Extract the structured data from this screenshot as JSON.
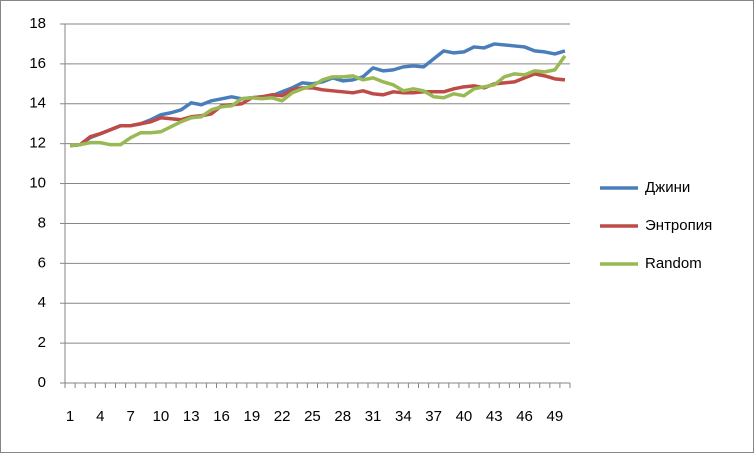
{
  "chart_data": {
    "type": "line",
    "categories": [
      1,
      null,
      null,
      4,
      null,
      null,
      7,
      null,
      null,
      10,
      null,
      null,
      13,
      null,
      null,
      16,
      null,
      null,
      19,
      null,
      null,
      22,
      null,
      null,
      25,
      null,
      null,
      28,
      null,
      null,
      31,
      null,
      null,
      34,
      null,
      null,
      37,
      null,
      null,
      40,
      null,
      null,
      43,
      null,
      null,
      46,
      null,
      null,
      49,
      null
    ],
    "series": [
      {
        "name": "Джини",
        "color": "#4a7ebb",
        "values": [
          11.9,
          11.95,
          12.3,
          12.5,
          12.7,
          12.9,
          12.9,
          13.0,
          13.2,
          13.45,
          13.55,
          13.7,
          14.05,
          13.95,
          14.15,
          14.25,
          14.35,
          14.25,
          14.3,
          14.35,
          14.4,
          14.6,
          14.8,
          15.05,
          15.0,
          15.1,
          15.3,
          15.15,
          15.2,
          15.35,
          15.8,
          15.65,
          15.7,
          15.85,
          15.9,
          15.85,
          16.25,
          16.65,
          16.55,
          16.6,
          16.85,
          16.8,
          17.0,
          16.95,
          16.9,
          16.85,
          16.65,
          16.6,
          16.5,
          16.65
        ]
      },
      {
        "name": "Энтропия",
        "color": "#be4b48",
        "values": [
          11.9,
          11.95,
          12.35,
          12.5,
          12.7,
          12.9,
          12.9,
          13.0,
          13.1,
          13.3,
          13.25,
          13.2,
          13.35,
          13.4,
          13.5,
          13.9,
          13.95,
          14.0,
          14.3,
          14.35,
          14.45,
          14.4,
          14.7,
          14.8,
          14.8,
          14.7,
          14.65,
          14.6,
          14.55,
          14.65,
          14.5,
          14.45,
          14.6,
          14.55,
          14.55,
          14.6,
          14.6,
          14.6,
          14.75,
          14.85,
          14.9,
          14.8,
          15.0,
          15.05,
          15.1,
          15.3,
          15.5,
          15.4,
          15.25,
          15.2
        ]
      },
      {
        "name": "Random",
        "color": "#98b954",
        "values": [
          11.9,
          11.95,
          12.05,
          12.05,
          11.95,
          11.95,
          12.3,
          12.55,
          12.55,
          12.6,
          12.85,
          13.1,
          13.3,
          13.35,
          13.7,
          13.85,
          13.9,
          14.25,
          14.3,
          14.25,
          14.3,
          14.15,
          14.55,
          14.75,
          14.9,
          15.2,
          15.35,
          15.35,
          15.4,
          15.2,
          15.3,
          15.1,
          14.95,
          14.65,
          14.75,
          14.65,
          14.35,
          14.3,
          14.5,
          14.4,
          14.75,
          14.85,
          14.95,
          15.35,
          15.5,
          15.45,
          15.65,
          15.6,
          15.7,
          16.4
        ]
      }
    ],
    "ylim": [
      0,
      18
    ],
    "yticks": [
      0,
      2,
      4,
      6,
      8,
      10,
      12,
      14,
      16,
      18
    ],
    "grid": true,
    "legend": "right"
  }
}
